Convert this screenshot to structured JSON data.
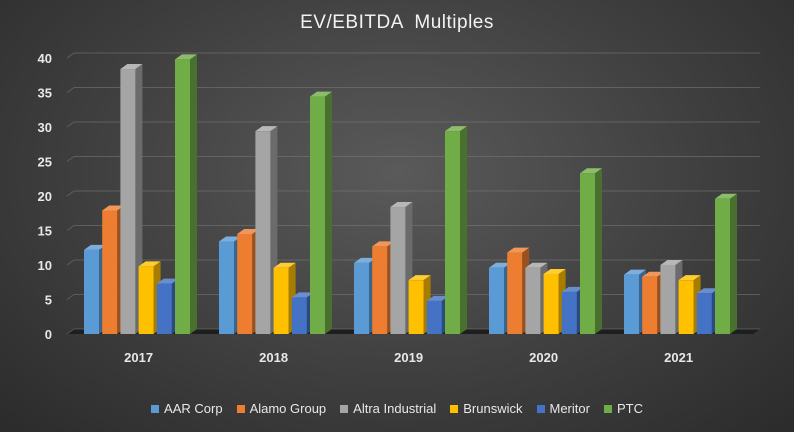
{
  "chart_data": {
    "type": "bar",
    "title": "EV/EBITDA  Multiples",
    "xlabel": "",
    "ylabel": "",
    "ylim": [
      0,
      40
    ],
    "yticks": [
      0,
      5,
      10,
      15,
      20,
      25,
      30,
      35,
      40
    ],
    "categories": [
      "2017",
      "2018",
      "2019",
      "2020",
      "2021"
    ],
    "legend_position": "bottom",
    "grid": true,
    "series": [
      {
        "name": "AAR Corp",
        "color": "#5b9bd5",
        "values": [
          12.2,
          13.4,
          10.3,
          9.6,
          8.6
        ]
      },
      {
        "name": "Alamo Group",
        "color": "#ed7d31",
        "values": [
          17.9,
          14.5,
          12.7,
          11.8,
          8.3
        ]
      },
      {
        "name": "Altra Industrial",
        "color": "#a5a5a5",
        "values": [
          38.4,
          29.4,
          18.4,
          9.6,
          10.0
        ]
      },
      {
        "name": "Brunswick",
        "color": "#ffc000",
        "values": [
          9.8,
          9.6,
          7.8,
          8.7,
          7.8
        ]
      },
      {
        "name": "Meritor",
        "color": "#4472c4",
        "values": [
          7.3,
          5.3,
          4.8,
          6.1,
          5.9
        ]
      },
      {
        "name": "PTC",
        "color": "#70ad47",
        "values": [
          39.8,
          34.4,
          29.4,
          23.3,
          19.6
        ]
      }
    ]
  }
}
